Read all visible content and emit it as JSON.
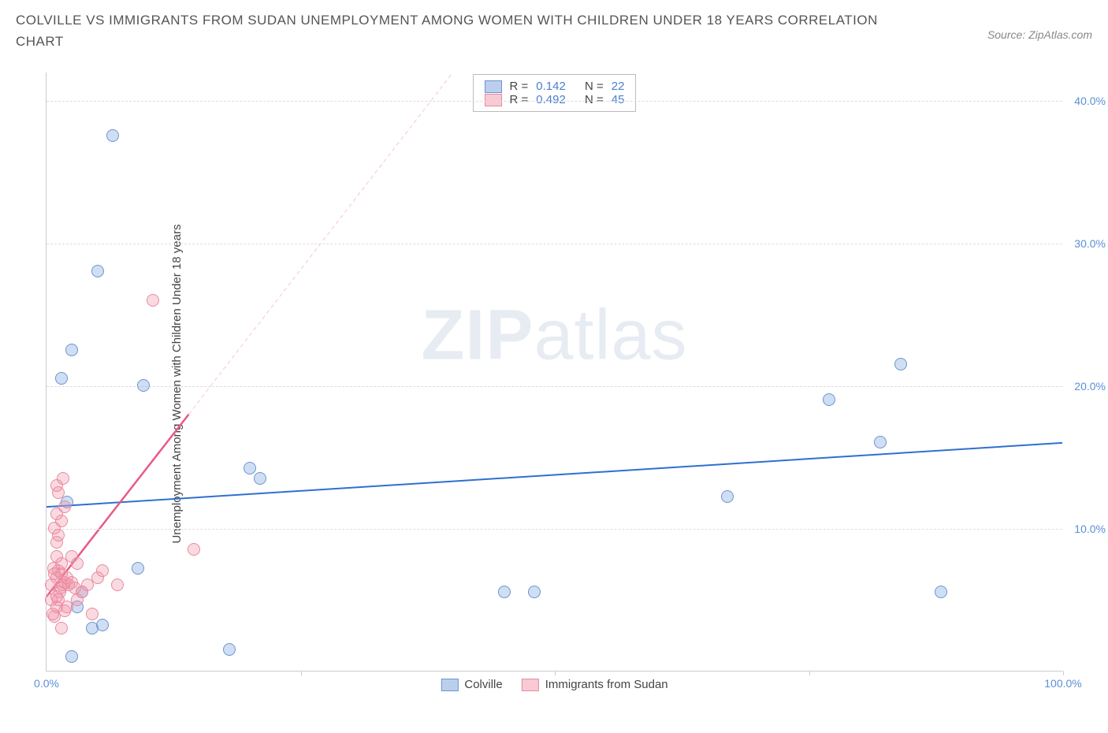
{
  "title": "COLVILLE VS IMMIGRANTS FROM SUDAN UNEMPLOYMENT AMONG WOMEN WITH CHILDREN UNDER 18 YEARS CORRELATION CHART",
  "source": "Source: ZipAtlas.com",
  "watermark_a": "ZIP",
  "watermark_b": "atlas",
  "y_axis_title": "Unemployment Among Women with Children Under 18 years",
  "chart": {
    "type": "scatter",
    "background_color": "#ffffff",
    "grid_color": "#dddddd",
    "axis_color": "#cccccc",
    "tick_label_color": "#5b8fd6",
    "xlim": [
      0,
      100
    ],
    "ylim": [
      0,
      42
    ],
    "y_ticks": [
      10,
      20,
      30,
      40
    ],
    "y_tick_labels": [
      "10.0%",
      "20.0%",
      "30.0%",
      "40.0%"
    ],
    "x_ticks": [
      0,
      50,
      100
    ],
    "x_tick_labels": [
      "0.0%",
      "",
      "100.0%"
    ],
    "x_minor_ticks": [
      25,
      50,
      75,
      100
    ],
    "marker_radius": 8,
    "series": [
      {
        "name": "Colville",
        "color_fill": "rgba(120,160,220,0.35)",
        "color_stroke": "#6a95d0",
        "r_label": "R =",
        "r_value": "0.142",
        "n_label": "N =",
        "n_value": "22",
        "trend": {
          "x1": 0,
          "y1": 11.5,
          "x2": 100,
          "y2": 16.0,
          "color": "#2f6fd0",
          "width": 2,
          "dash": "0"
        },
        "points": [
          [
            2.5,
            1.0
          ],
          [
            4.5,
            3.0
          ],
          [
            5.5,
            3.2
          ],
          [
            3.0,
            4.5
          ],
          [
            3.5,
            5.5
          ],
          [
            18.0,
            1.5
          ],
          [
            9.0,
            7.2
          ],
          [
            9.5,
            20.0
          ],
          [
            5.0,
            28.0
          ],
          [
            6.5,
            37.5
          ],
          [
            2.5,
            22.5
          ],
          [
            1.5,
            20.5
          ],
          [
            20.0,
            14.2
          ],
          [
            21.0,
            13.5
          ],
          [
            45.0,
            5.5
          ],
          [
            48.0,
            5.5
          ],
          [
            67.0,
            12.2
          ],
          [
            77.0,
            19.0
          ],
          [
            82.0,
            16.0
          ],
          [
            84.0,
            21.5
          ],
          [
            88.0,
            5.5
          ],
          [
            2.0,
            11.8
          ]
        ]
      },
      {
        "name": "Immigrants from Sudan",
        "color_fill": "rgba(240,150,170,0.35)",
        "color_stroke": "#e88aa0",
        "r_label": "R =",
        "r_value": "0.492",
        "n_label": "N =",
        "n_value": "45",
        "trend": {
          "x1": 0,
          "y1": 5.2,
          "x2": 14,
          "y2": 18.0,
          "color": "#e85a85",
          "width": 2.5,
          "dash": "0"
        },
        "trend_ext": {
          "x1": 14,
          "y1": 18.0,
          "x2": 40,
          "y2": 42.0,
          "color": "rgba(232,90,133,0.35)",
          "width": 1,
          "dash": "5,4"
        },
        "points": [
          [
            0.8,
            3.8
          ],
          [
            1.0,
            4.5
          ],
          [
            1.2,
            5.0
          ],
          [
            1.3,
            5.5
          ],
          [
            1.4,
            5.8
          ],
          [
            1.6,
            6.0
          ],
          [
            1.8,
            6.2
          ],
          [
            1.0,
            6.5
          ],
          [
            1.5,
            6.8
          ],
          [
            1.2,
            7.0
          ],
          [
            2.0,
            6.5
          ],
          [
            2.2,
            6.0
          ],
          [
            1.5,
            7.5
          ],
          [
            1.0,
            8.0
          ],
          [
            2.5,
            6.2
          ],
          [
            2.8,
            5.8
          ],
          [
            1.8,
            4.2
          ],
          [
            0.6,
            4.0
          ],
          [
            1.0,
            9.0
          ],
          [
            1.2,
            9.5
          ],
          [
            0.8,
            10.0
          ],
          [
            1.5,
            10.5
          ],
          [
            1.0,
            11.0
          ],
          [
            1.8,
            11.5
          ],
          [
            1.2,
            12.5
          ],
          [
            1.0,
            13.0
          ],
          [
            1.6,
            13.5
          ],
          [
            0.5,
            6.0
          ],
          [
            0.7,
            7.2
          ],
          [
            3.0,
            5.0
          ],
          [
            3.5,
            5.5
          ],
          [
            4.0,
            6.0
          ],
          [
            5.0,
            6.5
          ],
          [
            7.0,
            6.0
          ],
          [
            4.5,
            4.0
          ],
          [
            3.0,
            7.5
          ],
          [
            2.5,
            8.0
          ],
          [
            5.5,
            7.0
          ],
          [
            14.5,
            8.5
          ],
          [
            10.5,
            26.0
          ],
          [
            1.5,
            3.0
          ],
          [
            0.5,
            5.0
          ],
          [
            2.0,
            4.5
          ],
          [
            1.0,
            5.2
          ],
          [
            0.8,
            6.8
          ]
        ]
      }
    ]
  },
  "legend": {
    "items": [
      {
        "label": "Colville",
        "swatch": "sw-blue"
      },
      {
        "label": "Immigrants from Sudan",
        "swatch": "sw-pink"
      }
    ]
  }
}
